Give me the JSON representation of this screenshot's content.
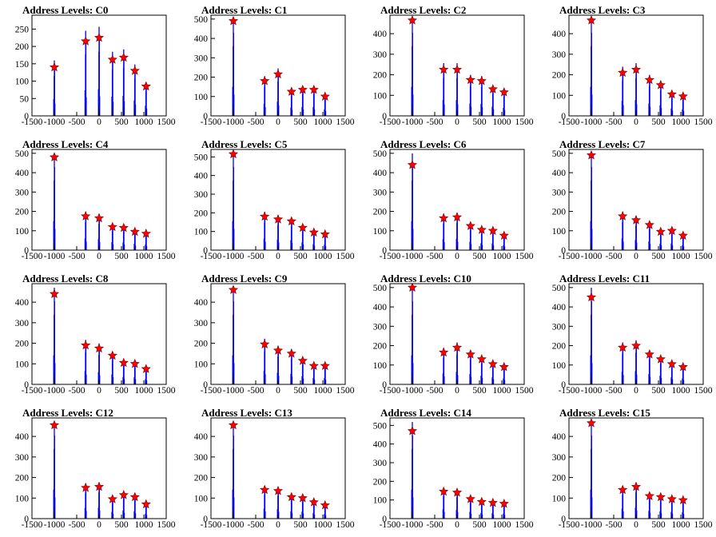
{
  "chart_data": [
    {
      "type": "bar",
      "title": "Address Levels: C0",
      "xlim": [
        -1500,
        1500
      ],
      "ylim": [
        0,
        290
      ],
      "yticks": [
        0,
        50,
        100,
        150,
        200,
        250
      ],
      "xticks": [
        -1500,
        -1000,
        -500,
        0,
        500,
        1000,
        1500
      ],
      "x": [
        -1000,
        -300,
        0,
        300,
        550,
        800,
        1050
      ],
      "values": [
        140,
        215,
        225,
        162,
        168,
        130,
        85
      ],
      "colors": {
        "bars": "#0000ff",
        "markers": "#ff0000"
      }
    },
    {
      "type": "bar",
      "title": "Address Levels: C1",
      "xlim": [
        -1500,
        1500
      ],
      "ylim": [
        0,
        520
      ],
      "yticks": [
        0,
        100,
        200,
        300,
        400,
        500
      ],
      "xticks": [
        -1500,
        -1000,
        -500,
        0,
        500,
        1000,
        1500
      ],
      "x": [
        -1000,
        -300,
        0,
        300,
        550,
        800,
        1050
      ],
      "values": [
        490,
        180,
        215,
        125,
        135,
        135,
        100
      ],
      "colors": {
        "bars": "#0000ff",
        "markers": "#ff0000"
      }
    },
    {
      "type": "bar",
      "title": "Address Levels: C2",
      "xlim": [
        -1500,
        1500
      ],
      "ylim": [
        0,
        490
      ],
      "yticks": [
        0,
        100,
        200,
        300,
        400
      ],
      "xticks": [
        -1500,
        -1000,
        -500,
        0,
        500,
        1000,
        1500
      ],
      "x": [
        -1000,
        -300,
        0,
        300,
        550,
        800,
        1050
      ],
      "values": [
        465,
        225,
        225,
        175,
        170,
        130,
        115
      ],
      "colors": {
        "bars": "#0000ff",
        "markers": "#ff0000"
      }
    },
    {
      "type": "bar",
      "title": "Address Levels: C3",
      "xlim": [
        -1500,
        1500
      ],
      "ylim": [
        0,
        490
      ],
      "yticks": [
        0,
        100,
        200,
        300,
        400
      ],
      "xticks": [
        -1500,
        -1000,
        -500,
        0,
        500,
        1000,
        1500
      ],
      "x": [
        -1000,
        -300,
        0,
        300,
        550,
        800,
        1050
      ],
      "values": [
        465,
        210,
        225,
        175,
        150,
        105,
        95
      ],
      "colors": {
        "bars": "#0000ff",
        "markers": "#ff0000"
      }
    },
    {
      "type": "bar",
      "title": "Address Levels: C4",
      "xlim": [
        -1500,
        1500
      ],
      "ylim": [
        0,
        520
      ],
      "yticks": [
        0,
        100,
        200,
        300,
        400,
        500
      ],
      "xticks": [
        -1500,
        -1000,
        -500,
        0,
        500,
        1000,
        1500
      ],
      "x": [
        -1000,
        -300,
        0,
        300,
        550,
        800,
        1050
      ],
      "values": [
        480,
        175,
        165,
        120,
        115,
        95,
        85
      ],
      "colors": {
        "bars": "#0000ff",
        "markers": "#ff0000"
      }
    },
    {
      "type": "bar",
      "title": "Address Levels: C5",
      "xlim": [
        -1500,
        1500
      ],
      "ylim": [
        0,
        540
      ],
      "yticks": [
        0,
        100,
        200,
        300,
        400,
        500
      ],
      "xticks": [
        -1500,
        -1000,
        -500,
        0,
        500,
        1000,
        1500
      ],
      "x": [
        -1000,
        -300,
        0,
        300,
        550,
        800,
        1050
      ],
      "values": [
        515,
        180,
        165,
        155,
        120,
        95,
        85
      ],
      "colors": {
        "bars": "#0000ff",
        "markers": "#ff0000"
      }
    },
    {
      "type": "bar",
      "title": "Address Levels: C6",
      "xlim": [
        -1500,
        1500
      ],
      "ylim": [
        0,
        520
      ],
      "yticks": [
        0,
        100,
        200,
        300,
        400,
        500
      ],
      "xticks": [
        -1500,
        -1000,
        -500,
        0,
        500,
        1000,
        1500
      ],
      "x": [
        -1000,
        -300,
        0,
        300,
        550,
        800,
        1050
      ],
      "values": [
        440,
        165,
        170,
        125,
        105,
        100,
        75
      ],
      "colors": {
        "bars": "#0000ff",
        "markers": "#ff0000"
      }
    },
    {
      "type": "bar",
      "title": "Address Levels: C7",
      "xlim": [
        -1500,
        1500
      ],
      "ylim": [
        0,
        520
      ],
      "yticks": [
        0,
        100,
        200,
        300,
        400,
        500
      ],
      "xticks": [
        -1500,
        -1000,
        -500,
        0,
        500,
        1000,
        1500
      ],
      "x": [
        -1000,
        -300,
        0,
        300,
        550,
        800,
        1050
      ],
      "values": [
        490,
        175,
        155,
        130,
        95,
        100,
        75
      ],
      "colors": {
        "bars": "#0000ff",
        "markers": "#ff0000"
      }
    },
    {
      "type": "bar",
      "title": "Address Levels: C8",
      "xlim": [
        -1500,
        1500
      ],
      "ylim": [
        0,
        490
      ],
      "yticks": [
        0,
        100,
        200,
        300,
        400
      ],
      "xticks": [
        -1500,
        -1000,
        -500,
        0,
        500,
        1000,
        1500
      ],
      "x": [
        -1000,
        -300,
        0,
        300,
        550,
        800,
        1050
      ],
      "values": [
        440,
        190,
        175,
        140,
        105,
        100,
        75
      ],
      "colors": {
        "bars": "#0000ff",
        "markers": "#ff0000"
      }
    },
    {
      "type": "bar",
      "title": "Address Levels: C9",
      "xlim": [
        -1500,
        1500
      ],
      "ylim": [
        0,
        490
      ],
      "yticks": [
        0,
        100,
        200,
        300,
        400
      ],
      "xticks": [
        -1500,
        -1000,
        -500,
        0,
        500,
        1000,
        1500
      ],
      "x": [
        -1000,
        -300,
        0,
        300,
        550,
        800,
        1050
      ],
      "values": [
        460,
        195,
        165,
        150,
        115,
        90,
        90
      ],
      "colors": {
        "bars": "#0000ff",
        "markers": "#ff0000"
      }
    },
    {
      "type": "bar",
      "title": "Address Levels: C10",
      "xlim": [
        -1500,
        1500
      ],
      "ylim": [
        0,
        520
      ],
      "yticks": [
        0,
        100,
        200,
        300,
        400,
        500
      ],
      "xticks": [
        -1500,
        -1000,
        -500,
        0,
        500,
        1000,
        1500
      ],
      "x": [
        -1000,
        -300,
        0,
        300,
        550,
        800,
        1050
      ],
      "values": [
        500,
        165,
        190,
        155,
        130,
        105,
        90
      ],
      "colors": {
        "bars": "#0000ff",
        "markers": "#ff0000"
      }
    },
    {
      "type": "bar",
      "title": "Address Levels: C11",
      "xlim": [
        -1500,
        1500
      ],
      "ylim": [
        0,
        520
      ],
      "yticks": [
        0,
        100,
        200,
        300,
        400,
        500
      ],
      "xticks": [
        -1500,
        -1000,
        -500,
        0,
        500,
        1000,
        1500
      ],
      "x": [
        -1000,
        -300,
        0,
        300,
        550,
        800,
        1050
      ],
      "values": [
        450,
        190,
        200,
        155,
        130,
        105,
        90
      ],
      "colors": {
        "bars": "#0000ff",
        "markers": "#ff0000"
      }
    },
    {
      "type": "bar",
      "title": "Address Levels: C12",
      "xlim": [
        -1500,
        1500
      ],
      "ylim": [
        0,
        490
      ],
      "yticks": [
        0,
        100,
        200,
        300,
        400
      ],
      "xticks": [
        -1500,
        -1000,
        -500,
        0,
        500,
        1000,
        1500
      ],
      "x": [
        -1000,
        -300,
        0,
        300,
        550,
        800,
        1050
      ],
      "values": [
        455,
        150,
        155,
        95,
        115,
        105,
        70
      ],
      "colors": {
        "bars": "#0000ff",
        "markers": "#ff0000"
      }
    },
    {
      "type": "bar",
      "title": "Address Levels: C13",
      "xlim": [
        -1500,
        1500
      ],
      "ylim": [
        0,
        490
      ],
      "yticks": [
        0,
        100,
        200,
        300,
        400
      ],
      "xticks": [
        -1500,
        -1000,
        -500,
        0,
        500,
        1000,
        1500
      ],
      "x": [
        -1000,
        -300,
        0,
        300,
        550,
        800,
        1050
      ],
      "values": [
        455,
        140,
        135,
        105,
        100,
        80,
        65
      ],
      "colors": {
        "bars": "#0000ff",
        "markers": "#ff0000"
      }
    },
    {
      "type": "bar",
      "title": "Address Levels: C14",
      "xlim": [
        -1500,
        1500
      ],
      "ylim": [
        0,
        540
      ],
      "yticks": [
        0,
        100,
        200,
        300,
        400,
        500
      ],
      "xticks": [
        -1500,
        -1000,
        -500,
        0,
        500,
        1000,
        1500
      ],
      "x": [
        -1000,
        -300,
        0,
        300,
        550,
        800,
        1050
      ],
      "values": [
        470,
        145,
        140,
        105,
        90,
        85,
        80
      ],
      "colors": {
        "bars": "#0000ff",
        "markers": "#ff0000"
      }
    },
    {
      "type": "bar",
      "title": "Address Levels: C15",
      "xlim": [
        -1500,
        1500
      ],
      "ylim": [
        0,
        490
      ],
      "yticks": [
        0,
        100,
        200,
        300,
        400
      ],
      "xticks": [
        -1500,
        -1000,
        -500,
        0,
        500,
        1000,
        1500
      ],
      "x": [
        -1000,
        -300,
        0,
        300,
        550,
        800,
        1050
      ],
      "values": [
        465,
        140,
        155,
        110,
        105,
        95,
        90
      ],
      "colors": {
        "bars": "#0000ff",
        "markers": "#ff0000"
      }
    }
  ]
}
